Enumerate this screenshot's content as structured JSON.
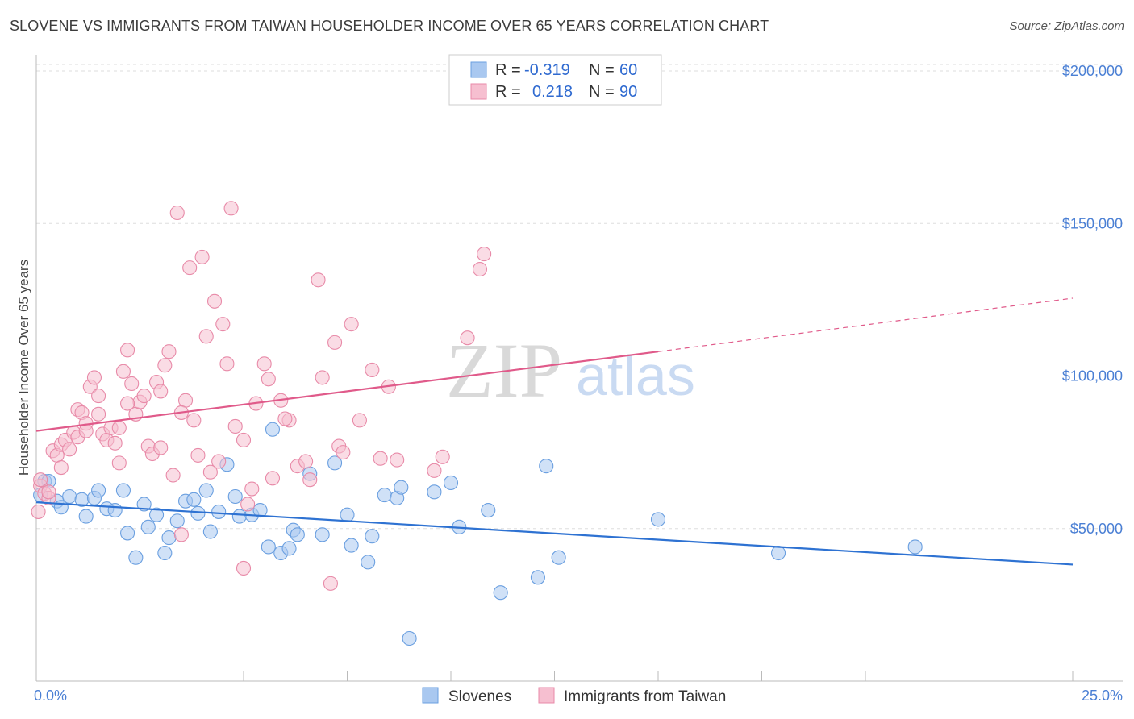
{
  "title": "SLOVENE VS IMMIGRANTS FROM TAIWAN HOUSEHOLDER INCOME OVER 65 YEARS CORRELATION CHART",
  "source": "Source: ZipAtlas.com",
  "watermark": {
    "zip": "ZIP",
    "atlas": "atlas"
  },
  "legend": {
    "rows": [
      {
        "r_label": "R =",
        "r_value": "-0.319",
        "n_label": "N =",
        "n_value": "60"
      },
      {
        "r_label": "R =",
        "r_value": "0.218",
        "n_label": "N =",
        "n_value": "90"
      }
    ]
  },
  "bottom_legend": [
    "Slovenes",
    "Immigrants from Taiwan"
  ],
  "colors": {
    "blue_fill": "#a9c8f0",
    "blue_stroke": "#6a9fe0",
    "blue_line": "#2e72d2",
    "pink_fill": "#f6bfd0",
    "pink_stroke": "#e88aa8",
    "pink_line": "#e05a8a",
    "tick_text": "#4a7fd4",
    "grid": "#dddddd"
  },
  "chart_data": {
    "type": "scatter",
    "title": "SLOVENE VS IMMIGRANTS FROM TAIWAN HOUSEHOLDER INCOME OVER 65 YEARS CORRELATION CHART",
    "xlabel": "",
    "ylabel": "Householder Income Over 65 years",
    "xlim": [
      0,
      25
    ],
    "ylim": [
      0,
      200000
    ],
    "x_tick_labels": [
      "0.0%",
      "25.0%"
    ],
    "y_ticks": [
      50000,
      100000,
      150000,
      200000
    ],
    "y_tick_labels": [
      "$50,000",
      "$100,000",
      "$150,000",
      "$200,000"
    ],
    "grid": true,
    "series": [
      {
        "name": "Slovenes",
        "color": "blue",
        "trend": {
          "x": [
            0,
            25
          ],
          "y": [
            58600,
            38200
          ],
          "dashed_from": null
        },
        "points": [
          [
            0.1,
            61000
          ],
          [
            0.2,
            65500
          ],
          [
            0.3,
            65500
          ],
          [
            0.5,
            59000
          ],
          [
            0.6,
            57000
          ],
          [
            0.8,
            60500
          ],
          [
            1.1,
            59500
          ],
          [
            1.2,
            54000
          ],
          [
            1.4,
            60000
          ],
          [
            1.5,
            62500
          ],
          [
            1.7,
            56500
          ],
          [
            1.9,
            56000
          ],
          [
            2.1,
            62500
          ],
          [
            2.2,
            48500
          ],
          [
            2.4,
            40500
          ],
          [
            2.6,
            58000
          ],
          [
            2.7,
            50500
          ],
          [
            2.9,
            54500
          ],
          [
            3.1,
            42000
          ],
          [
            3.2,
            47000
          ],
          [
            3.4,
            52500
          ],
          [
            3.6,
            59000
          ],
          [
            3.8,
            59500
          ],
          [
            3.9,
            55000
          ],
          [
            4.1,
            62500
          ],
          [
            4.2,
            49000
          ],
          [
            4.4,
            55500
          ],
          [
            4.6,
            71000
          ],
          [
            4.8,
            60500
          ],
          [
            4.9,
            54000
          ],
          [
            5.2,
            54500
          ],
          [
            5.4,
            56000
          ],
          [
            5.6,
            44000
          ],
          [
            5.7,
            82500
          ],
          [
            5.9,
            42000
          ],
          [
            6.1,
            43500
          ],
          [
            6.2,
            49500
          ],
          [
            6.3,
            48000
          ],
          [
            6.6,
            68000
          ],
          [
            6.9,
            48000
          ],
          [
            7.2,
            71500
          ],
          [
            7.5,
            54500
          ],
          [
            7.6,
            44500
          ],
          [
            8.1,
            47500
          ],
          [
            8.0,
            39000
          ],
          [
            8.4,
            61000
          ],
          [
            8.7,
            60000
          ],
          [
            8.8,
            63500
          ],
          [
            9.0,
            14000
          ],
          [
            9.6,
            62000
          ],
          [
            10.0,
            65000
          ],
          [
            10.2,
            50500
          ],
          [
            10.9,
            56000
          ],
          [
            11.2,
            29000
          ],
          [
            12.1,
            34000
          ],
          [
            12.3,
            70500
          ],
          [
            12.6,
            40500
          ],
          [
            15.0,
            53000
          ],
          [
            17.9,
            42000
          ],
          [
            21.2,
            44000
          ]
        ]
      },
      {
        "name": "Immigrants from Taiwan",
        "color": "pink",
        "trend": {
          "x": [
            0,
            15
          ],
          "y": [
            82000,
            108000
          ],
          "dashed_to": [
            25,
            125500
          ]
        },
        "points": [
          [
            0.05,
            55500
          ],
          [
            0.1,
            64000
          ],
          [
            0.1,
            66000
          ],
          [
            0.2,
            61500
          ],
          [
            0.3,
            60000
          ],
          [
            0.4,
            75500
          ],
          [
            0.5,
            74000
          ],
          [
            0.6,
            77500
          ],
          [
            0.7,
            79000
          ],
          [
            0.8,
            76000
          ],
          [
            0.9,
            81500
          ],
          [
            1.0,
            89000
          ],
          [
            1.1,
            88000
          ],
          [
            1.2,
            84500
          ],
          [
            1.3,
            96500
          ],
          [
            1.4,
            99500
          ],
          [
            1.5,
            93500
          ],
          [
            1.5,
            87500
          ],
          [
            1.6,
            81000
          ],
          [
            1.7,
            79000
          ],
          [
            1.8,
            83000
          ],
          [
            1.9,
            78000
          ],
          [
            2.0,
            71500
          ],
          [
            2.1,
            101500
          ],
          [
            2.2,
            108500
          ],
          [
            2.3,
            97500
          ],
          [
            2.4,
            87500
          ],
          [
            2.5,
            91500
          ],
          [
            2.6,
            93500
          ],
          [
            2.7,
            77000
          ],
          [
            2.8,
            74500
          ],
          [
            2.9,
            98000
          ],
          [
            3.0,
            76500
          ],
          [
            3.1,
            103500
          ],
          [
            3.2,
            108000
          ],
          [
            3.3,
            67500
          ],
          [
            3.4,
            153500
          ],
          [
            3.5,
            48000
          ],
          [
            3.6,
            92000
          ],
          [
            3.7,
            135500
          ],
          [
            3.8,
            85500
          ],
          [
            3.9,
            74000
          ],
          [
            4.0,
            139000
          ],
          [
            4.1,
            113000
          ],
          [
            4.2,
            68500
          ],
          [
            4.3,
            124500
          ],
          [
            4.4,
            72000
          ],
          [
            4.5,
            117000
          ],
          [
            4.6,
            104000
          ],
          [
            4.7,
            155000
          ],
          [
            4.8,
            83500
          ],
          [
            5.0,
            37000
          ],
          [
            5.1,
            58000
          ],
          [
            5.2,
            63000
          ],
          [
            5.3,
            91000
          ],
          [
            5.5,
            104000
          ],
          [
            5.6,
            99000
          ],
          [
            5.7,
            66500
          ],
          [
            5.9,
            92000
          ],
          [
            6.1,
            85500
          ],
          [
            6.3,
            70500
          ],
          [
            6.5,
            72000
          ],
          [
            6.6,
            66000
          ],
          [
            6.8,
            131500
          ],
          [
            6.9,
            99500
          ],
          [
            7.1,
            32000
          ],
          [
            7.2,
            111000
          ],
          [
            7.3,
            77000
          ],
          [
            7.4,
            75000
          ],
          [
            7.6,
            117000
          ],
          [
            7.8,
            85500
          ],
          [
            8.1,
            102000
          ],
          [
            8.3,
            73000
          ],
          [
            8.5,
            96500
          ],
          [
            8.7,
            72500
          ],
          [
            9.6,
            69000
          ],
          [
            9.8,
            73500
          ],
          [
            10.4,
            112500
          ],
          [
            10.7,
            135000
          ],
          [
            10.8,
            140000
          ],
          [
            0.3,
            62000
          ],
          [
            0.6,
            70000
          ],
          [
            1.0,
            80000
          ],
          [
            1.2,
            82000
          ],
          [
            2.0,
            83000
          ],
          [
            2.2,
            91000
          ],
          [
            3.0,
            95000
          ],
          [
            3.5,
            88000
          ],
          [
            5.0,
            79000
          ],
          [
            6.0,
            86000
          ]
        ]
      }
    ]
  }
}
